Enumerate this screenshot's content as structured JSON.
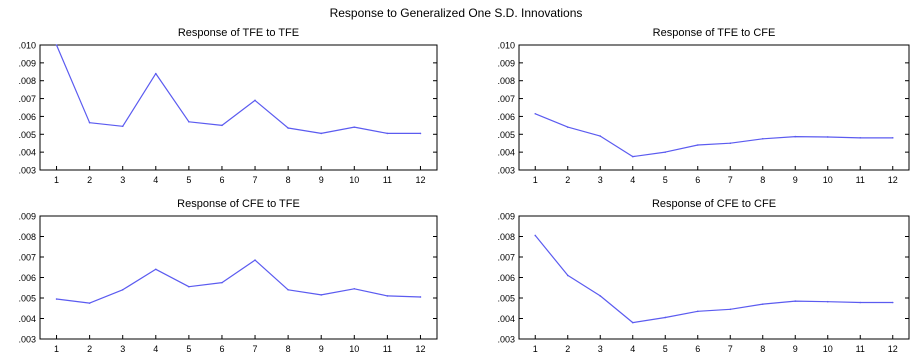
{
  "figure_title": "Response to Generalized One S.D. Innovations",
  "chart_data": [
    {
      "type": "line",
      "title": "Response of TFE to TFE",
      "x": [
        1,
        2,
        3,
        4,
        5,
        6,
        7,
        8,
        9,
        10,
        11,
        12
      ],
      "values": [
        0.01,
        0.00565,
        0.00545,
        0.0084,
        0.0057,
        0.0055,
        0.0069,
        0.00535,
        0.00505,
        0.0054,
        0.00505,
        0.00505
      ],
      "ylim": [
        0.003,
        0.01
      ],
      "yticks": [
        ".003",
        ".004",
        ".005",
        ".006",
        ".007",
        ".008",
        ".009",
        ".010"
      ],
      "xticks": [
        "1",
        "2",
        "3",
        "4",
        "5",
        "6",
        "7",
        "8",
        "9",
        "10",
        "11",
        "12"
      ],
      "line_color": "#5b5bf0"
    },
    {
      "type": "line",
      "title": "Response of TFE to CFE",
      "x": [
        1,
        2,
        3,
        4,
        5,
        6,
        7,
        8,
        9,
        10,
        11,
        12
      ],
      "values": [
        0.00615,
        0.0054,
        0.0049,
        0.00375,
        0.004,
        0.0044,
        0.0045,
        0.00475,
        0.00487,
        0.00485,
        0.0048,
        0.0048
      ],
      "ylim": [
        0.003,
        0.01
      ],
      "yticks": [
        ".003",
        ".004",
        ".005",
        ".006",
        ".007",
        ".008",
        ".009",
        ".010"
      ],
      "xticks": [
        "1",
        "2",
        "3",
        "4",
        "5",
        "6",
        "7",
        "8",
        "9",
        "10",
        "11",
        "12"
      ],
      "line_color": "#5b5bf0"
    },
    {
      "type": "line",
      "title": "Response of CFE to TFE",
      "x": [
        1,
        2,
        3,
        4,
        5,
        6,
        7,
        8,
        9,
        10,
        11,
        12
      ],
      "values": [
        0.00495,
        0.00475,
        0.0054,
        0.0064,
        0.00555,
        0.00575,
        0.00685,
        0.0054,
        0.00515,
        0.00545,
        0.0051,
        0.00505
      ],
      "ylim": [
        0.003,
        0.009
      ],
      "yticks": [
        ".003",
        ".004",
        ".005",
        ".006",
        ".007",
        ".008",
        ".009"
      ],
      "xticks": [
        "1",
        "2",
        "3",
        "4",
        "5",
        "6",
        "7",
        "8",
        "9",
        "10",
        "11",
        "12"
      ],
      "line_color": "#5b5bf0"
    },
    {
      "type": "line",
      "title": "Response of CFE to CFE",
      "x": [
        1,
        2,
        3,
        4,
        5,
        6,
        7,
        8,
        9,
        10,
        11,
        12
      ],
      "values": [
        0.00805,
        0.0061,
        0.0051,
        0.0038,
        0.00405,
        0.00435,
        0.00445,
        0.0047,
        0.00485,
        0.00482,
        0.00478,
        0.00478
      ],
      "ylim": [
        0.003,
        0.009
      ],
      "yticks": [
        ".003",
        ".004",
        ".005",
        ".006",
        ".007",
        ".008",
        ".009"
      ],
      "xticks": [
        "1",
        "2",
        "3",
        "4",
        "5",
        "6",
        "7",
        "8",
        "9",
        "10",
        "11",
        "12"
      ],
      "line_color": "#5b5bf0"
    }
  ]
}
